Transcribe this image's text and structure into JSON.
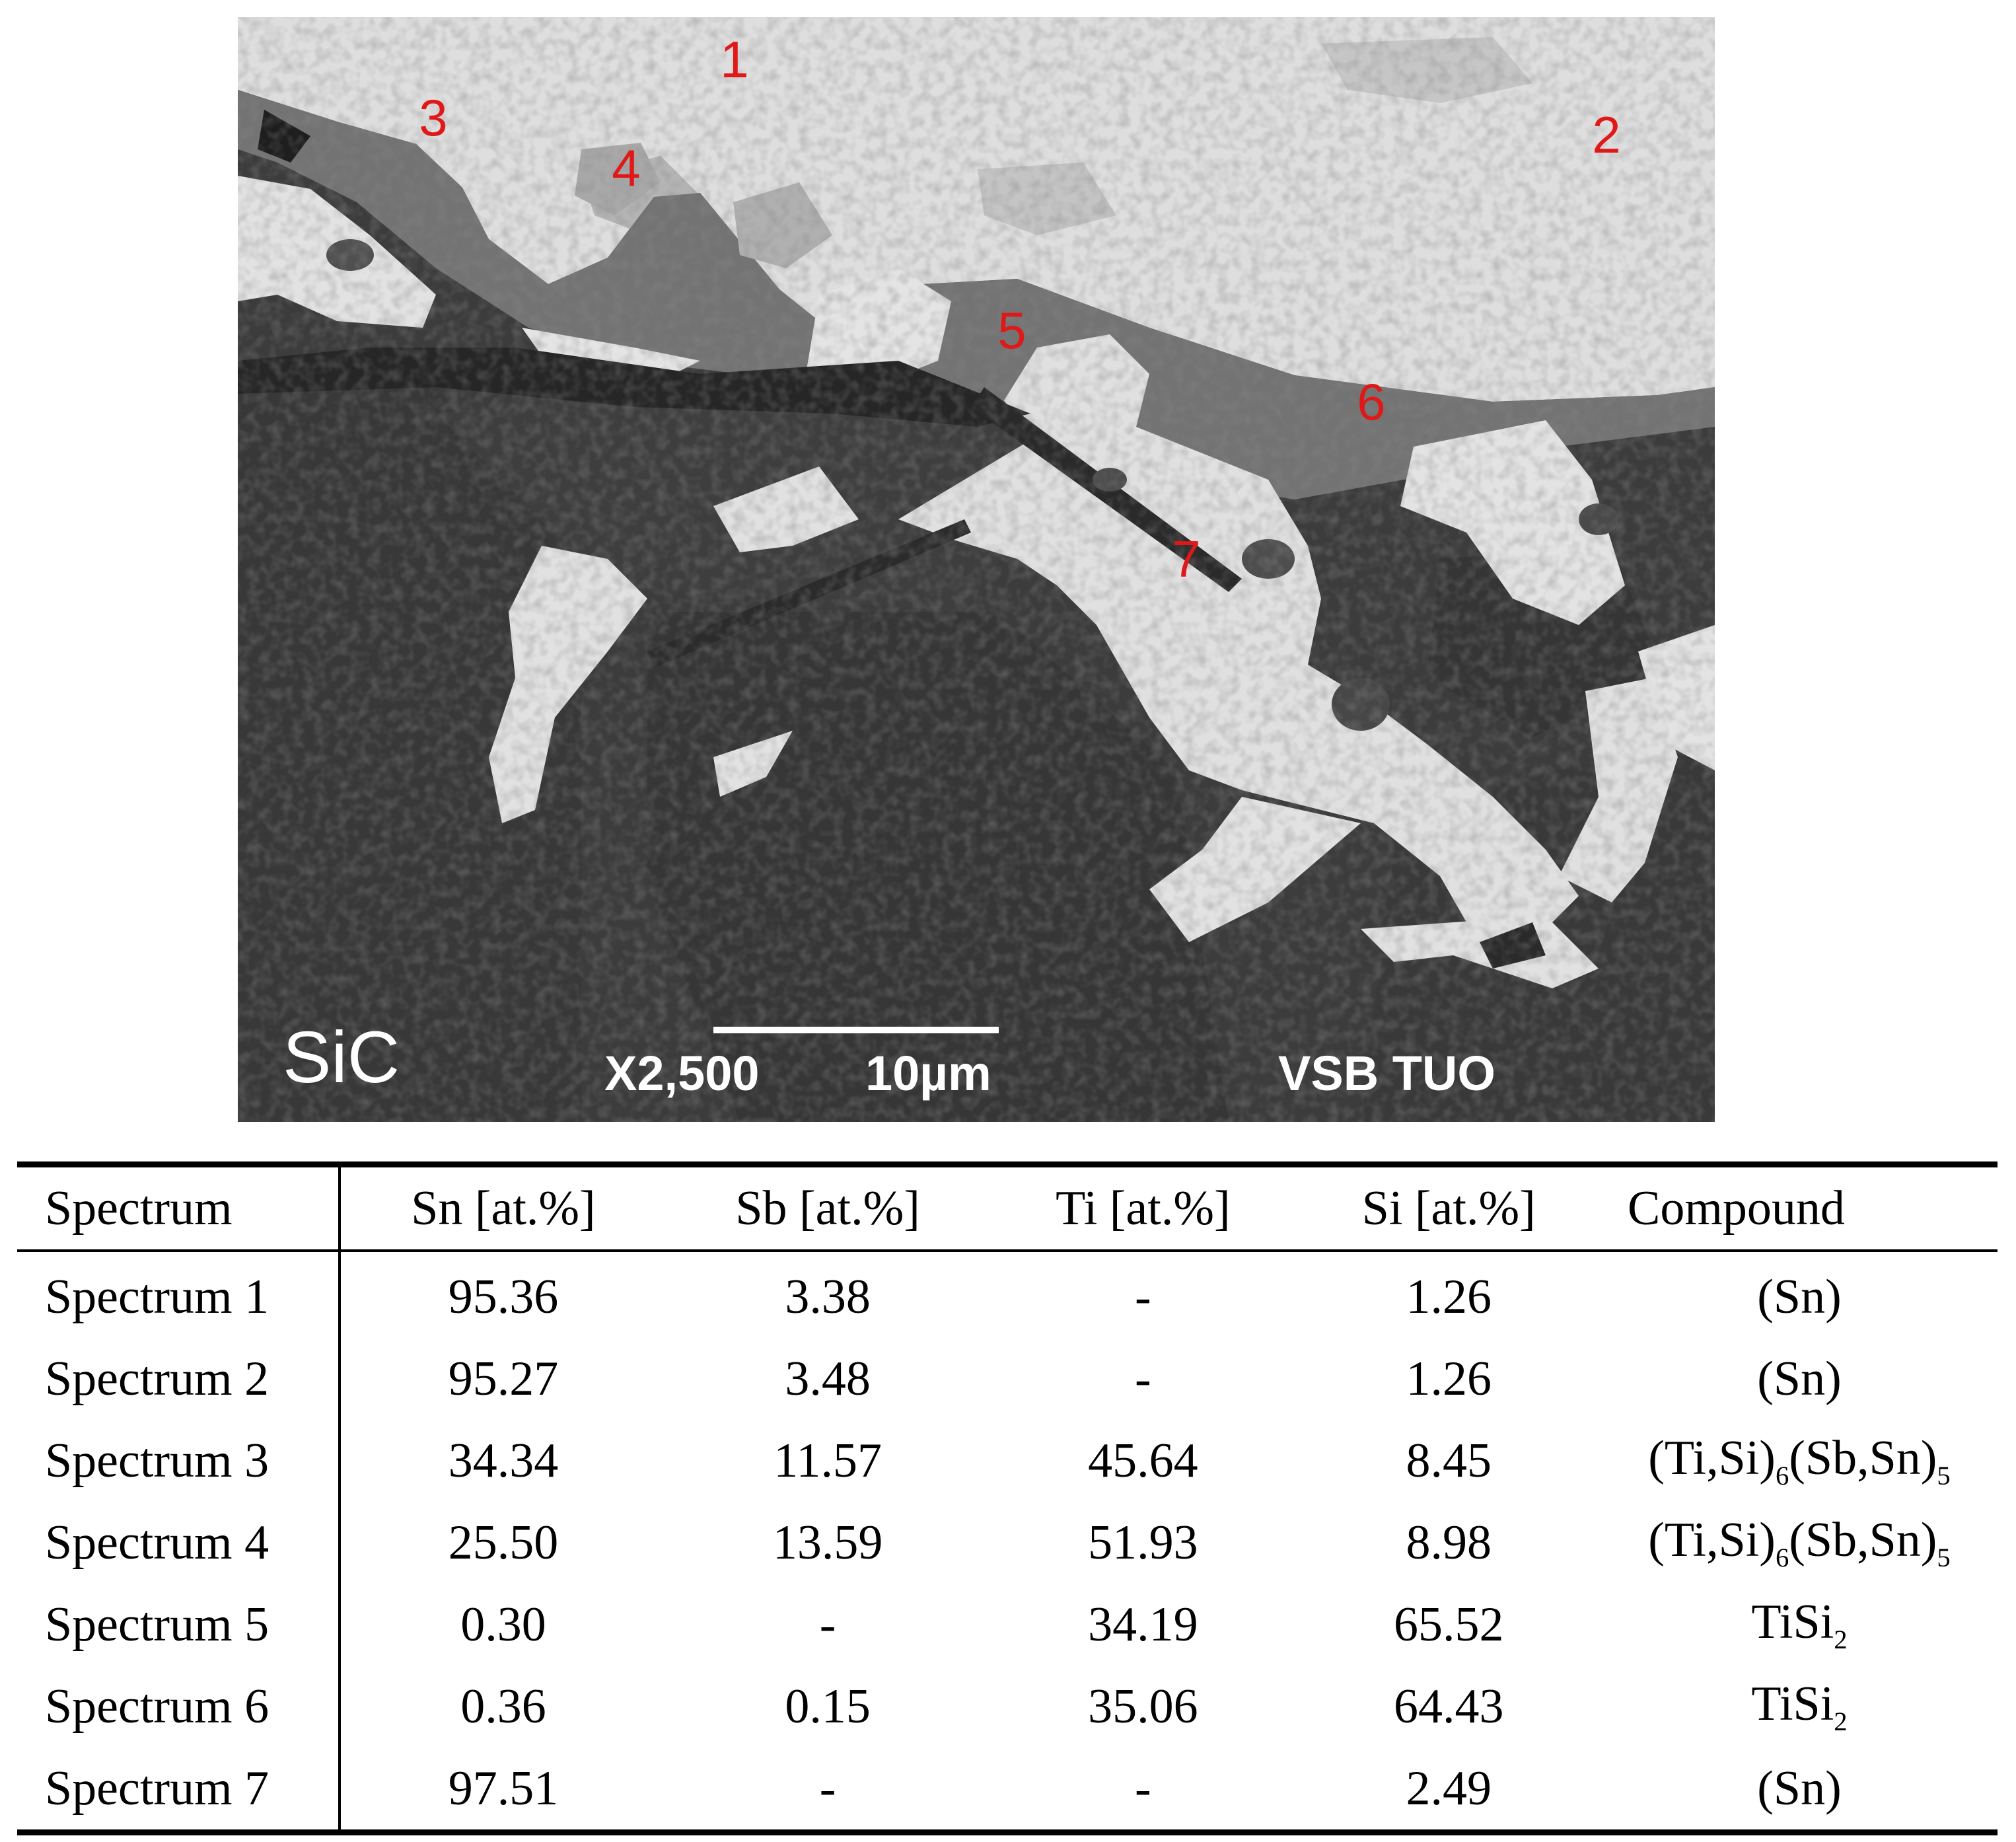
{
  "micrograph": {
    "phase_label": "SiC",
    "magnification": "X2,500",
    "scale_bar": "10µm",
    "lab_label": "VSB TUO",
    "spot_label_color": "#e01818",
    "spots": [
      {
        "label": "1"
      },
      {
        "label": "2"
      },
      {
        "label": "3"
      },
      {
        "label": "4"
      },
      {
        "label": "5"
      },
      {
        "label": "6"
      },
      {
        "label": "7"
      }
    ]
  },
  "table": {
    "headers": [
      "Spectrum",
      "Sn [at.%]",
      "Sb [at.%]",
      "Ti [at.%]",
      "Si [at.%]",
      "Compound"
    ],
    "rows": [
      [
        "Spectrum 1",
        "95.36",
        "3.38",
        "-",
        "1.26",
        "(Sn)"
      ],
      [
        "Spectrum 2",
        "95.27",
        "3.48",
        "-",
        "1.26",
        "(Sn)"
      ],
      [
        "Spectrum 3",
        "34.34",
        "11.57",
        "45.64",
        "8.45",
        "(Ti,Si)6(Sb,Sn)5"
      ],
      [
        "Spectrum 4",
        "25.50",
        "13.59",
        "51.93",
        "8.98",
        "(Ti,Si)6(Sb,Sn)5"
      ],
      [
        "Spectrum 5",
        "0.30",
        "-",
        "34.19",
        "65.52",
        "TiSi2"
      ],
      [
        "Spectrum 6",
        "0.36",
        "0.15",
        "35.06",
        "64.43",
        "TiSi2"
      ],
      [
        "Spectrum 7",
        "97.51",
        "-",
        "-",
        "2.49",
        "(Sn)"
      ]
    ]
  }
}
